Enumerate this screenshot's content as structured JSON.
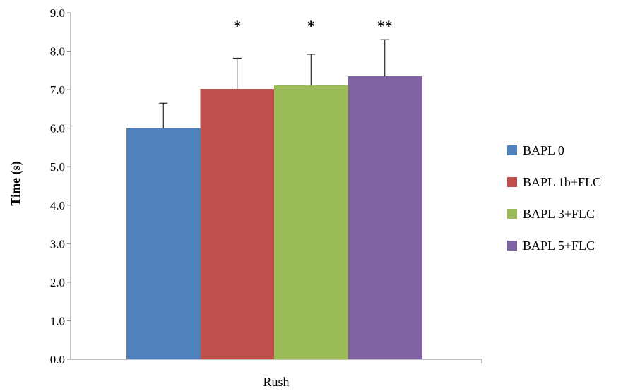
{
  "chart_data": {
    "type": "bar",
    "title": "",
    "ylabel": "Time (s)",
    "xlabel": "",
    "categories": [
      "Rush"
    ],
    "ylim": [
      0,
      9
    ],
    "yticks": [
      "0.0",
      "1.0",
      "2.0",
      "3.0",
      "4.0",
      "5.0",
      "6.0",
      "7.0",
      "8.0",
      "9.0"
    ],
    "grid": false,
    "legend_position": "right",
    "series": [
      {
        "name": "BAPL 0",
        "values": [
          6.0
        ],
        "error": [
          0.65
        ],
        "significance": "",
        "color": "#4F81BD"
      },
      {
        "name": "BAPL 1b+FLC",
        "values": [
          7.02
        ],
        "error": [
          0.8
        ],
        "significance": "*",
        "color": "#C0504D"
      },
      {
        "name": "BAPL 3+FLC",
        "values": [
          7.12
        ],
        "error": [
          0.8
        ],
        "significance": "*",
        "color": "#9BBB59"
      },
      {
        "name": "BAPL 5+FLC",
        "values": [
          7.35
        ],
        "error": [
          0.95
        ],
        "significance": "**",
        "color": "#8064A2"
      }
    ]
  }
}
